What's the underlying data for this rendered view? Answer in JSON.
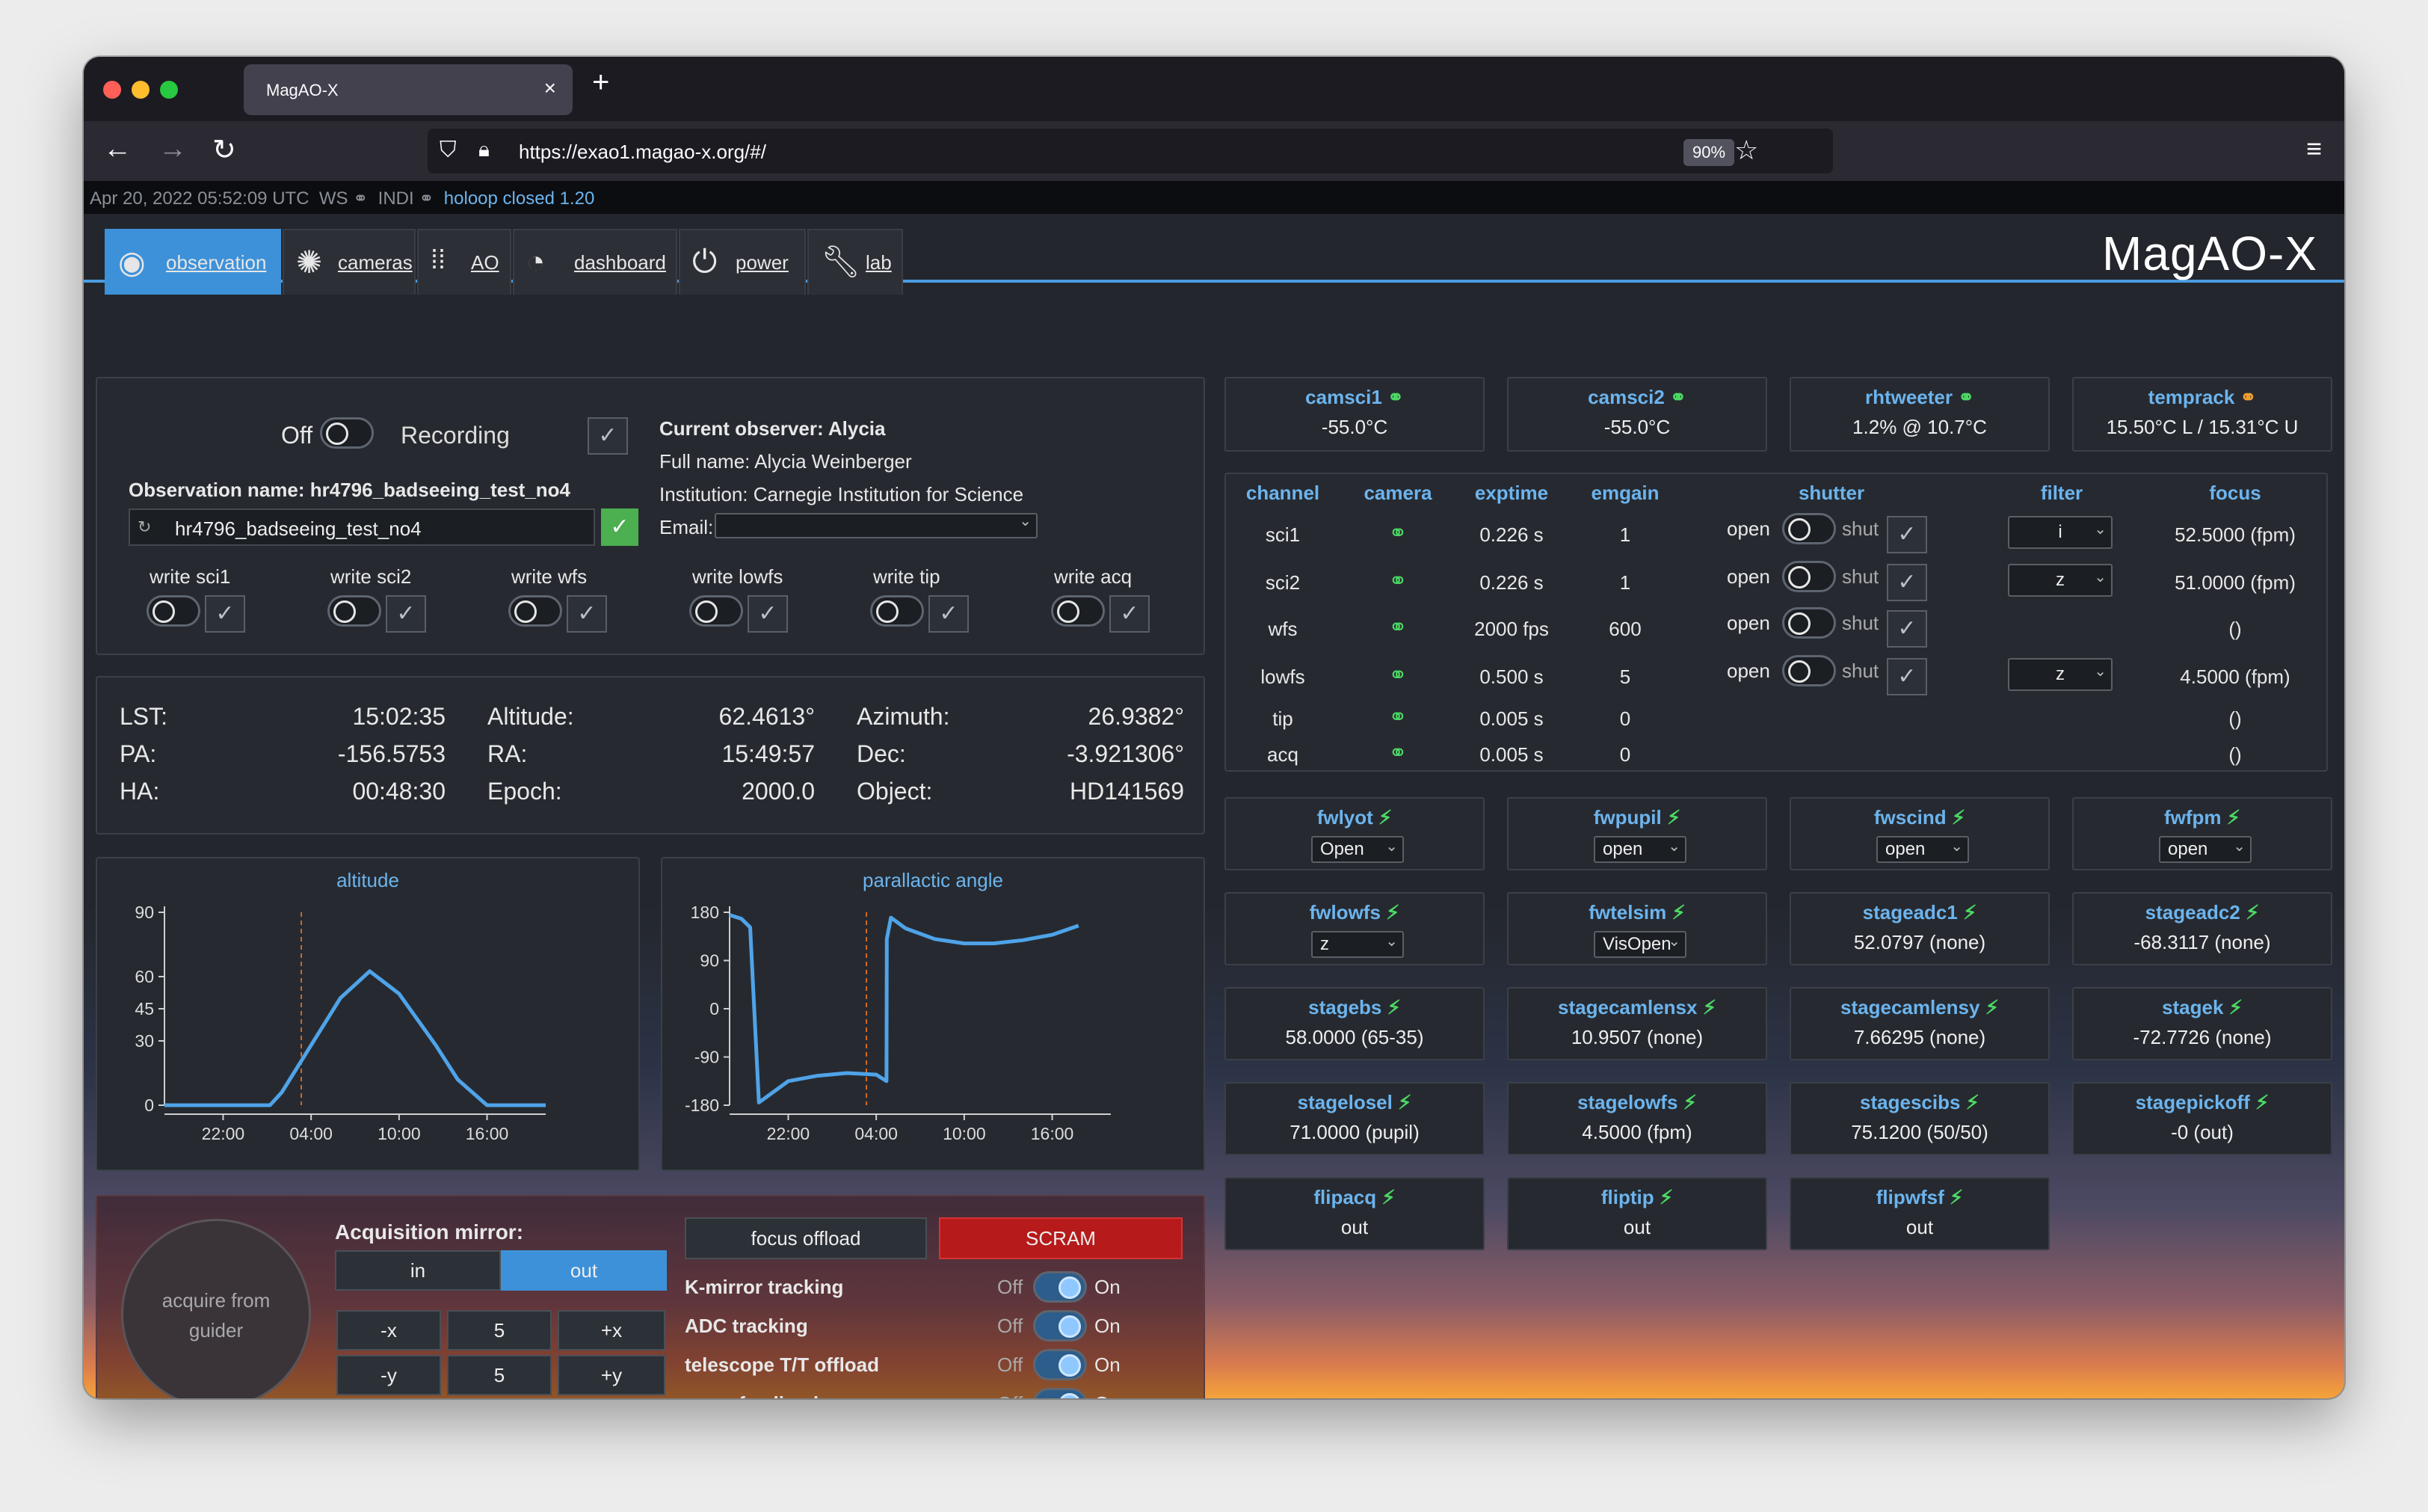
{
  "browser": {
    "tab_title": "MagAO-X",
    "url": "https://exao1.magao-x.org/#/",
    "zoom": "90%"
  },
  "status_bar": {
    "timestamp": "Apr 20, 2022 05:52:09 UTC",
    "ws": "WS",
    "indi": "INDI",
    "holoop": "holoop closed 1.20"
  },
  "nav": {
    "tabs": [
      {
        "label": "observation",
        "icon": "eye-icon"
      },
      {
        "label": "cameras",
        "icon": "aperture-icon"
      },
      {
        "label": "AO",
        "icon": "grid-dots-icon"
      },
      {
        "label": "dashboard",
        "icon": "gauge-icon"
      },
      {
        "label": "power",
        "icon": "power-icon"
      },
      {
        "label": "lab",
        "icon": "wrench-icon"
      }
    ],
    "logo": "MagAO-X"
  },
  "observation": {
    "off_label": "Off",
    "recording_label": "Recording",
    "name_label": "Observation name: hr4796_badseeing_test_no4",
    "name_value": "hr4796_badseeing_test_no4",
    "current_observer": "Current observer: Alycia",
    "full_name": "Full name: Alycia Weinberger",
    "institution": "Institution: Carnegie Institution for Science",
    "email_label": "Email:",
    "writes": [
      "write sci1",
      "write sci2",
      "write wfs",
      "write lowfs",
      "write tip",
      "write acq"
    ]
  },
  "telescope": {
    "lst_label": "LST:",
    "lst": "15:02:35",
    "pa_label": "PA:",
    "pa": "-156.5753",
    "ha_label": "HA:",
    "ha": "00:48:30",
    "alt_label": "Altitude:",
    "alt": "62.4613°",
    "ra_label": "RA:",
    "ra": "15:49:57",
    "epoch_label": "Epoch:",
    "epoch": "2000.0",
    "az_label": "Azimuth:",
    "az": "26.9382°",
    "dec_label": "Dec:",
    "dec": "-3.921306°",
    "obj_label": "Object:",
    "obj": "HD141569"
  },
  "chart_data": [
    {
      "type": "line",
      "title": "altitude",
      "x_ticks": [
        "22:00",
        "04:00",
        "10:00",
        "16:00"
      ],
      "y_ticks": [
        0,
        30,
        45,
        60,
        90
      ],
      "ylim": [
        0,
        90
      ],
      "xlim": [
        18,
        44
      ],
      "current_time": 3.33,
      "x": [
        18,
        25.2,
        26,
        28,
        30,
        32,
        34,
        36.5,
        38,
        40,
        42,
        44
      ],
      "values": [
        0,
        0,
        6,
        28,
        50,
        62.5,
        52,
        28,
        12,
        0,
        0,
        0
      ]
    },
    {
      "type": "line",
      "title": "parallactic angle",
      "x_ticks": [
        "22:00",
        "04:00",
        "10:00",
        "16:00"
      ],
      "y_ticks": [
        180,
        90,
        0,
        -90,
        -180
      ],
      "ylim": [
        -180,
        180
      ],
      "xlim": [
        18,
        44
      ],
      "current_time": 3.33,
      "x": [
        18,
        18.8,
        19.4,
        20,
        22,
        24,
        26,
        28,
        28.7,
        28.72,
        29,
        30,
        32,
        34,
        36,
        38,
        40,
        41.8
      ],
      "values": [
        175,
        168,
        152,
        -175,
        -135,
        -125,
        -120,
        -123,
        -135,
        130,
        170,
        150,
        130,
        122,
        122,
        128,
        138,
        155
      ]
    }
  ],
  "acq": {
    "acquire_label": "acquire from guider",
    "mirror_label": "Acquisition mirror:",
    "in_label": "in",
    "out_label": "out",
    "minus_x": "-x",
    "step_x": "5",
    "plus_x": "+x",
    "minus_y": "-y",
    "step_y": "5",
    "plus_y": "+y",
    "focus_offload": "focus offload",
    "scram": "SCRAM",
    "toggles": [
      {
        "label": "K-mirror tracking",
        "off": "Off",
        "on": "On"
      },
      {
        "label": "ADC tracking",
        "off": "Off",
        "on": "On"
      },
      {
        "label": "telescope T/T offload",
        "off": "Off",
        "on": "On"
      },
      {
        "label": "camwfs-align loop",
        "off": "Off",
        "on": "On"
      }
    ]
  },
  "temps": [
    {
      "title": "camsci1",
      "value": "-55.0°C",
      "icon": "link-icon"
    },
    {
      "title": "camsci2",
      "value": "-55.0°C",
      "icon": "link-icon"
    },
    {
      "title": "rhtweeter",
      "value": "1.2% @ 10.7°C",
      "icon": "link-icon"
    },
    {
      "title": "temprack",
      "value": "15.50°C L / 15.31°C U",
      "icon": "link-icon"
    }
  ],
  "camera_table": {
    "headers": [
      "channel",
      "camera",
      "exptime",
      "emgain",
      "shutter",
      "filter",
      "focus"
    ],
    "open_label": "open",
    "shut_label": "shut",
    "rows": [
      {
        "channel": "sci1",
        "exptime": "0.226 s",
        "emgain": "1",
        "filter": "i",
        "focus": "52.5000 (fpm)"
      },
      {
        "channel": "sci2",
        "exptime": "0.226 s",
        "emgain": "1",
        "filter": "z",
        "focus": "51.0000 (fpm)"
      },
      {
        "channel": "wfs",
        "exptime": "2000 fps",
        "emgain": "600",
        "filter": "",
        "focus": "()"
      },
      {
        "channel": "lowfs",
        "exptime": "0.500 s",
        "emgain": "5",
        "filter": "z",
        "focus": "4.5000 (fpm)"
      },
      {
        "channel": "tip",
        "exptime": "0.005 s",
        "emgain": "0",
        "filter": "",
        "focus": "()"
      },
      {
        "channel": "acq",
        "exptime": "0.005 s",
        "emgain": "0",
        "filter": "",
        "focus": "()"
      }
    ]
  },
  "devices": [
    {
      "title": "fwlyot",
      "select": "Open"
    },
    {
      "title": "fwpupil",
      "select": "open"
    },
    {
      "title": "fwscind",
      "select": "open"
    },
    {
      "title": "fwfpm",
      "select": "open"
    },
    {
      "title": "fwlowfs",
      "select": "z"
    },
    {
      "title": "fwtelsim",
      "select": "VisOpen"
    },
    {
      "title": "stageadc1",
      "value": "52.0797 (none)"
    },
    {
      "title": "stageadc2",
      "value": "-68.3117 (none)"
    },
    {
      "title": "stagebs",
      "value": "58.0000 (65-35)"
    },
    {
      "title": "stagecamlensx",
      "value": "10.9507 (none)"
    },
    {
      "title": "stagecamlensy",
      "value": "7.66295 (none)"
    },
    {
      "title": "stagek",
      "value": "-72.7726 (none)"
    },
    {
      "title": "stagelosel",
      "value": "71.0000 (pupil)"
    },
    {
      "title": "stagelowfs",
      "value": "4.5000 (fpm)"
    },
    {
      "title": "stagescibs",
      "value": "75.1200 (50/50)"
    },
    {
      "title": "stagepickoff",
      "value": "-0 (out)"
    },
    {
      "title": "flipacq",
      "value": "out"
    },
    {
      "title": "fliptip",
      "value": "out"
    },
    {
      "title": "flipwfsf",
      "value": "out"
    }
  ],
  "colors": {
    "accent": "#3d91d9",
    "heading": "#6cb4ee",
    "ok_green": "#4cd964",
    "scram_red": "#b61a1a",
    "line": "#4fa3e8",
    "now_marker": "#d2691e"
  }
}
